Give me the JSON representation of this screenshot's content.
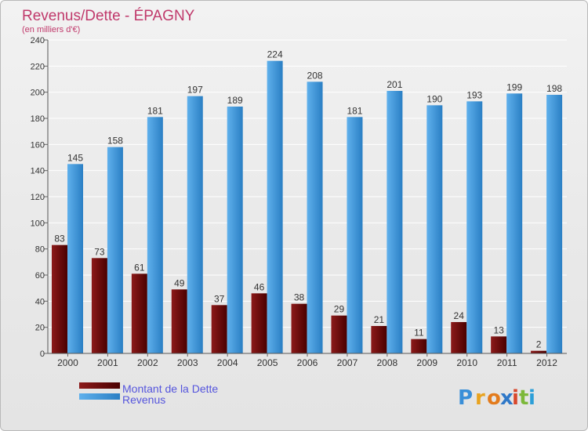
{
  "colors": {
    "title": "#c0396b",
    "debt_light": "#8c1a1a",
    "debt_dark": "#4a0000",
    "rev_light": "#5fb0ec",
    "rev_dark": "#2a7fc4",
    "axis_text": "#333333",
    "legend_text": "#5555dd",
    "grid": "#ffffff"
  },
  "logo": {
    "letters": [
      "P",
      "r",
      "o",
      "x",
      "i",
      "t",
      "i"
    ],
    "colors": [
      "#3a8fd8",
      "#e8a320",
      "#e37b1c",
      "#2f78c8",
      "#d8472b",
      "#7cb83a",
      "#2d9fd8"
    ]
  },
  "chart_data": {
    "type": "bar",
    "title": "Revenus/Dette - ÉPAGNY",
    "subtitle": "(en milliers d'€)",
    "categories": [
      "2000",
      "2001",
      "2002",
      "2003",
      "2004",
      "2005",
      "2006",
      "2007",
      "2008",
      "2009",
      "2010",
      "2011",
      "2012"
    ],
    "series": [
      {
        "name": "Montant de la Dette",
        "values": [
          83,
          73,
          61,
          49,
          37,
          46,
          38,
          29,
          21,
          11,
          24,
          13,
          2
        ]
      },
      {
        "name": "Revenus",
        "values": [
          145,
          158,
          181,
          197,
          189,
          224,
          208,
          181,
          201,
          190,
          193,
          199,
          198
        ]
      }
    ],
    "ylim": [
      0,
      240
    ],
    "yticks": [
      0,
      20,
      40,
      60,
      80,
      100,
      120,
      140,
      160,
      180,
      200,
      220,
      240
    ],
    "grid": true,
    "legend_position": "bottom-left"
  }
}
